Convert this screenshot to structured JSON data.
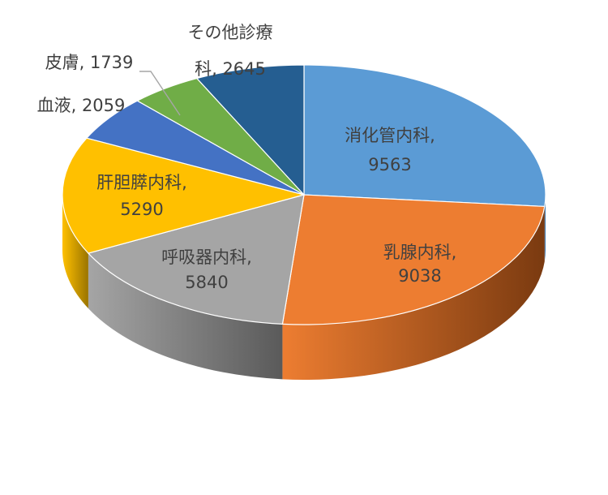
{
  "chart_data": {
    "type": "pie",
    "title": "",
    "series": [
      {
        "name": "",
        "slices": [
          {
            "label": "消化管内科",
            "value": 9563,
            "color": "#5B9BD5",
            "side_color": "#2E5F8E",
            "display": [
              "消化管内科,",
              "9563"
            ]
          },
          {
            "label": "乳腺内科",
            "value": 9038,
            "color": "#ED7D31",
            "side_color": "#7A3A10",
            "display": [
              "乳腺内科,",
              "9038"
            ]
          },
          {
            "label": "呼吸器内科",
            "value": 5840,
            "color": "#A5A5A5",
            "side_color": "#5A5A5A",
            "display": [
              "呼吸器内科,",
              "5840"
            ]
          },
          {
            "label": "肝胆膵内科",
            "value": 5290,
            "color": "#FFC000",
            "side_color": "#9A7400",
            "display": [
              "肝胆膵内科,",
              "5290"
            ]
          },
          {
            "label": "血液",
            "value": 2059,
            "color": "#4472C4",
            "side_color": "#223E70",
            "display": [
              "血液, 2059"
            ]
          },
          {
            "label": "皮膚",
            "value": 1739,
            "color": "#70AD47",
            "side_color": "#3E6326",
            "display": [
              "皮膚, 1739"
            ]
          },
          {
            "label": "その他診療科",
            "value": 2645,
            "color": "#255E91",
            "side_color": "#13304B",
            "display": [
              "その他診療",
              "科, 2645"
            ]
          }
        ]
      }
    ],
    "legend": "none",
    "label_color": "#404040"
  }
}
